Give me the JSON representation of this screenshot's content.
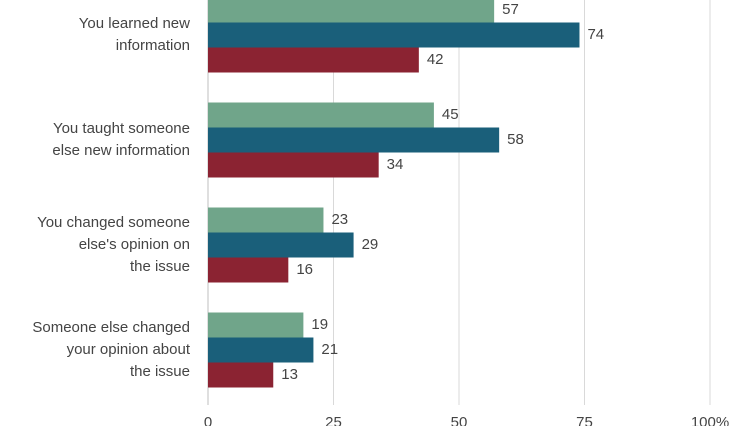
{
  "chart_data": {
    "type": "hbar",
    "categories": [
      [
        "You learned new",
        "information"
      ],
      [
        "You taught someone",
        "else new information"
      ],
      [
        "You changed someone",
        "else's opinion on",
        "the issue"
      ],
      [
        "Someone else changed",
        "your opinion about",
        "the issue"
      ]
    ],
    "series": [
      {
        "color": "#70a58a",
        "values": [
          57,
          45,
          23,
          19
        ]
      },
      {
        "color": "#1a5f7a",
        "values": [
          74,
          58,
          29,
          21
        ]
      },
      {
        "color": "#8b2332",
        "values": [
          42,
          34,
          16,
          13
        ]
      }
    ],
    "xlim": [
      0,
      100
    ],
    "xticks": [
      0,
      25,
      50,
      75,
      {
        "value": 100,
        "label": "100%"
      }
    ],
    "grid": true
  }
}
